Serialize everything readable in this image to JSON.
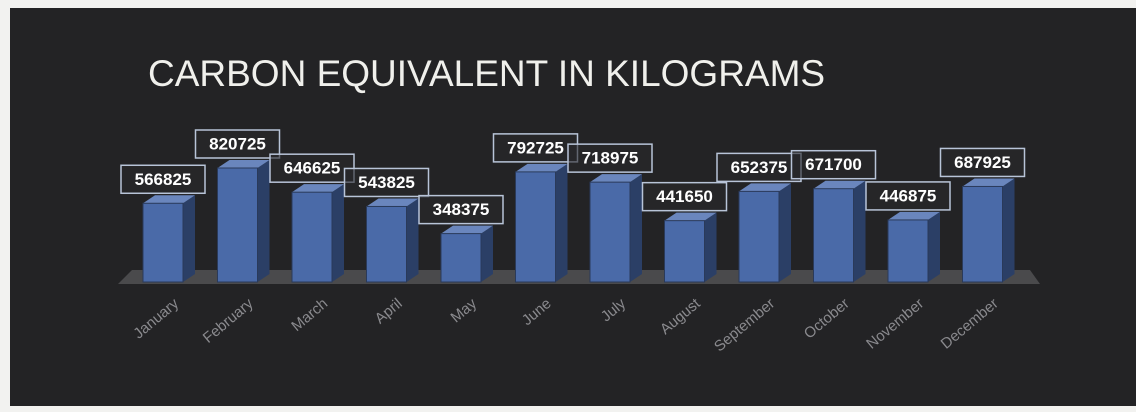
{
  "chart_data": {
    "type": "bar",
    "title": "CARBON EQUIVALENT IN KILOGRAMS",
    "categories": [
      "January",
      "February",
      "March",
      "April",
      "May",
      "June",
      "July",
      "August",
      "September",
      "October",
      "November",
      "December"
    ],
    "values": [
      566825,
      820725,
      646625,
      543825,
      348375,
      792725,
      718975,
      441650,
      652375,
      671700,
      446875,
      687925
    ],
    "color": "#4a6aa8"
  }
}
